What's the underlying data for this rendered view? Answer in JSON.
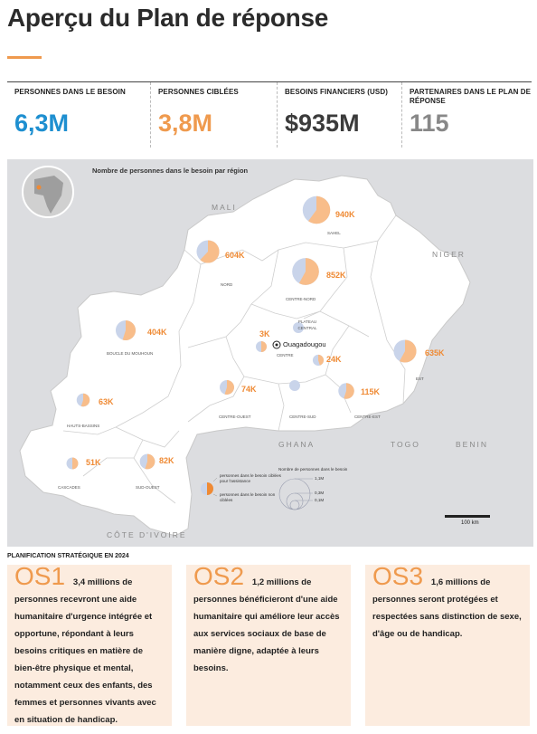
{
  "page": {
    "title": "Aperçu du Plan de réponse"
  },
  "stats": [
    {
      "label": "PERSONNES DANS LE BESOIN",
      "value": "6,3M",
      "color": "#1e8fd0"
    },
    {
      "label": "PERSONNES CIBLÉES",
      "value": "3,8M",
      "color": "#ef9a4e"
    },
    {
      "label": "BESOINS FINANCIERS (USD)",
      "value": "$935M",
      "color": "#3b3b3b"
    },
    {
      "label": "PARTENAIRES DANS LE PLAN DE RÉPONSE",
      "value": "115",
      "color": "#888888"
    }
  ],
  "map": {
    "title": "Nombre de personnes dans le besoin par région",
    "countries": [
      "MALI",
      "NIGER",
      "GHANA",
      "TOGO",
      "BENIN",
      "CÔTE D'IVOIRE"
    ],
    "capital": "Ouagadougou",
    "regions": [
      {
        "name": "SAHEL",
        "label": "940K",
        "pin": 0.4,
        "target_fraction": 0.6
      },
      {
        "name": "NORD",
        "label": "604K",
        "pin": 0.33,
        "target_fraction": 0.62
      },
      {
        "name": "CENTRE-NORD",
        "label": "852K",
        "pin": 0.39,
        "target_fraction": 0.58
      },
      {
        "name": "BOUCLE DU MOUHOUN",
        "label": "404K",
        "pin": 0.29,
        "target_fraction": 0.55
      },
      {
        "name": "EST",
        "label": "635K",
        "pin": 0.33,
        "target_fraction": 0.58
      },
      {
        "name": "PLATEAU CENTRAL",
        "label": "",
        "pin": 0.14,
        "target_fraction": 0.0
      },
      {
        "name": "CENTRE",
        "label": "3K",
        "pin": 0.12,
        "target_fraction": 0.5
      },
      {
        "name": "CENTRE-EST",
        "label": "24K",
        "pin": 0.16,
        "target_fraction": 0.45
      },
      {
        "name": "HAUTS-BASSINS",
        "label": "63K",
        "pin": 0.19,
        "target_fraction": 0.55
      },
      {
        "name": "CENTRE-OUEST",
        "label": "74K",
        "pin": 0.21,
        "target_fraction": 0.55
      },
      {
        "name": "CENTRE-SUD",
        "label": "",
        "pin": 0.13,
        "target_fraction": 0.0
      },
      {
        "name": "CENTRE-EST",
        "label": "115K",
        "pin": 0.23,
        "target_fraction": 0.55
      },
      {
        "name": "CASCADES",
        "label": "51K",
        "pin": 0.17,
        "target_fraction": 0.5
      },
      {
        "name": "SUD-OUEST",
        "label": "82K",
        "pin": 0.22,
        "target_fraction": 0.55
      }
    ],
    "legend": {
      "target": "personnes dans le besoin ciblées pour l'assistance",
      "non_target": "personnes dans le besoin non ciblées",
      "size_title": "Nombre de personnes dans le besoin",
      "sizes": [
        "1,1M",
        "0,3M",
        "0,1M"
      ]
    },
    "scale": "100 km",
    "colors": {
      "target": "#f8bd8a",
      "non_target": "#c9d4ea",
      "land": "#ffffff",
      "outside": "#dcdde0"
    }
  },
  "plan": {
    "heading": "PLANIFICATION STRATÉGIQUE EN 2024",
    "objectives": [
      {
        "code": "OS1",
        "text": "3,4 millions de personnes recevront une aide humanitaire d'urgence intégrée et opportune, répondant à leurs besoins critiques en matière de bien-être physique et mental, notamment ceux des enfants, des femmes et personnes vivants avec en situation de handicap."
      },
      {
        "code": "OS2",
        "text": "1,2 millions de personnes bénéficieront d'une aide humanitaire qui améliore leur accès aux services sociaux de base de manière digne, adaptée à leurs besoins."
      },
      {
        "code": "OS3",
        "text": "1,6 millions de personnes seront protégées et respectées sans distinction de sexe, d'âge ou de handicap."
      }
    ]
  }
}
